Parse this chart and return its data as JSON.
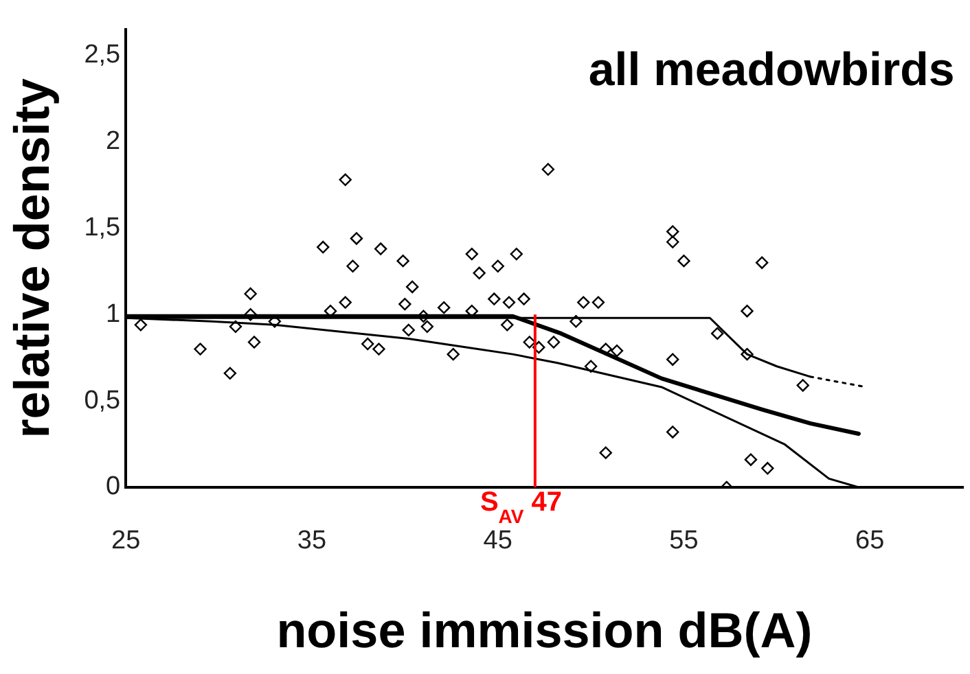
{
  "chart_data": {
    "type": "scatter",
    "title": "all meadowbirds",
    "xlabel": "noise immission dB(A)",
    "ylabel": "relative density",
    "xlim": [
      25,
      70
    ],
    "xticks": [
      25,
      35,
      45,
      55,
      65
    ],
    "ylim": [
      0,
      2.65
    ],
    "yticks": [
      0,
      {
        "value": 0.5,
        "label": "0,5"
      },
      1,
      {
        "value": 1.5,
        "label": "1,5"
      },
      2,
      {
        "value": 2.5,
        "label": "2,5"
      }
    ],
    "grid": false,
    "legend": false,
    "marker": "diamond",
    "ref_lines": [
      {
        "axis": "x",
        "value": 47,
        "label": "S$_{AV}$ 47",
        "color": "#ff0000"
      }
    ],
    "series": [
      {
        "color": "#000000",
        "x": [
          25.8,
          29,
          30.6,
          30.9,
          31.7,
          31.7,
          31.9,
          33,
          35.6,
          36,
          36.8,
          36.8,
          37.2,
          37.4,
          38,
          38.6,
          38.7,
          39.9,
          40,
          40.4,
          40.2,
          41,
          41.2,
          42.1,
          42.6,
          43.6,
          43.6,
          44,
          44.8,
          45,
          45.6,
          46,
          46.4,
          45.5,
          46.7,
          47.2,
          47.7,
          48,
          49.2,
          49.6,
          50.4,
          50.8,
          50,
          50.8,
          51.4,
          54.4,
          54.4,
          54.4,
          55,
          54.4,
          56.8,
          58.4,
          58.4,
          58.6,
          59.5,
          59.2,
          61.4,
          57.3
        ],
        "values": [
          0.94,
          0.8,
          0.66,
          0.93,
          1.12,
          1.0,
          0.84,
          0.96,
          1.39,
          1.02,
          1.07,
          1.78,
          1.28,
          1.44,
          0.83,
          0.8,
          1.38,
          1.31,
          1.06,
          1.16,
          0.91,
          0.99,
          0.93,
          1.04,
          0.77,
          1.02,
          1.35,
          1.24,
          1.09,
          1.28,
          1.07,
          1.35,
          1.09,
          0.94,
          0.84,
          0.81,
          1.84,
          0.84,
          0.96,
          1.07,
          1.07,
          0.8,
          0.7,
          0.2,
          0.79,
          0.74,
          1.48,
          1.42,
          1.31,
          0.32,
          0.89,
          1.02,
          0.77,
          0.16,
          0.11,
          1.3,
          0.59,
          0.0
        ]
      },
      {
        "type": "line",
        "color": "#000000",
        "marker": "none",
        "line_style": "solid",
        "x": [
          25,
          56.4,
          58.4,
          60,
          61.8
        ],
        "values": [
          0.98,
          0.98,
          0.77,
          0.7,
          0.64
        ]
      },
      {
        "type": "line",
        "color": "#000000",
        "marker": "none",
        "line_style": "dotted",
        "x": [
          61.8,
          64.8
        ],
        "values": [
          0.64,
          0.58
        ]
      },
      {
        "type": "line",
        "color": "#000000",
        "marker": "none",
        "line_style": "solid",
        "x": [
          25,
          45.8,
          48.4,
          53.8,
          59.2,
          61.8,
          64.4
        ],
        "values": [
          0.99,
          0.99,
          0.89,
          0.63,
          0.45,
          0.37,
          0.31
        ]
      },
      {
        "type": "line",
        "color": "#000000",
        "marker": "none",
        "line_style": "solid",
        "x": [
          25,
          29.6,
          33,
          40.2,
          45.8,
          48.2,
          53.8,
          60.4,
          62.8,
          64.4
        ],
        "values": [
          0.98,
          0.96,
          0.94,
          0.86,
          0.77,
          0.72,
          0.58,
          0.25,
          0.05,
          0.0
        ]
      }
    ]
  }
}
